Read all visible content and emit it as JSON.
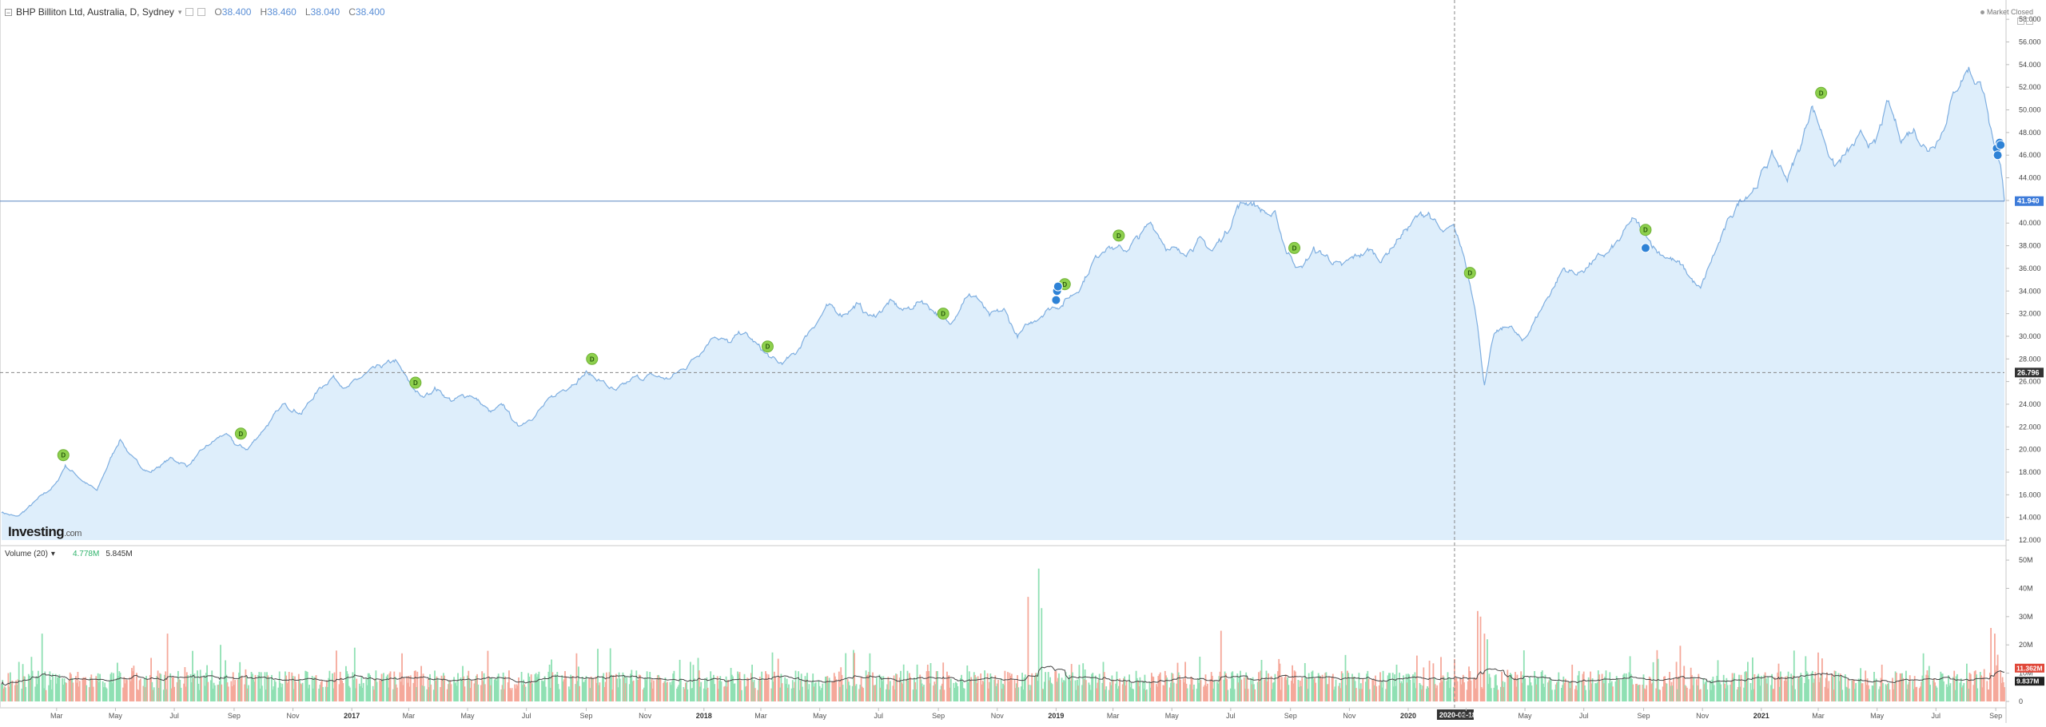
{
  "header": {
    "symbol": "BHP Billiton Ltd, Australia, D, Sydney",
    "open_label": "O",
    "open": "38.400",
    "high_label": "H",
    "high": "38.460",
    "low_label": "L",
    "low": "38.040",
    "close_label": "C",
    "close": "38.400"
  },
  "market_status": "Market Closed",
  "volume_header": {
    "label": "Volume (20)",
    "value_1": "4.778M",
    "value_2": "5.845M"
  },
  "watermark": {
    "brand": "Investing",
    "suffix": ".com"
  },
  "price_axis": {
    "ticks": [
      "12.000",
      "14.000",
      "16.000",
      "18.000",
      "20.000",
      "22.000",
      "24.000",
      "26.000",
      "28.000",
      "30.000",
      "32.000",
      "34.000",
      "36.000",
      "38.000",
      "40.000",
      "42.000",
      "44.000",
      "46.000",
      "48.000",
      "50.000",
      "52.000",
      "54.000",
      "56.000",
      "58.000"
    ],
    "range": [
      12,
      59
    ],
    "last_price_badge": "41.940",
    "last_price_value": 41.94,
    "crosshair_badge": "26.796",
    "crosshair_value": 26.796
  },
  "volume_axis": {
    "ticks": [
      "0",
      "10M",
      "20M",
      "30M",
      "40M",
      "50M"
    ],
    "badge_red": "11.362M",
    "badge_black": "9.837M"
  },
  "time_axis": {
    "labels": [
      "Mar",
      "May",
      "Jul",
      "Sep",
      "Nov",
      "2017",
      "Mar",
      "May",
      "Jul",
      "Sep",
      "Nov",
      "2018",
      "Mar",
      "May",
      "Jul",
      "Sep",
      "Nov",
      "2019",
      "Mar",
      "May",
      "Jul",
      "Sep",
      "Nov",
      "2020",
      "Mar",
      "May",
      "Jul",
      "Sep",
      "Nov",
      "2021",
      "Mar",
      "May",
      "Jul",
      "Sep"
    ],
    "crosshair_date": "2020-02-18"
  },
  "chart_data": {
    "type": "area",
    "x_start": "2016-01-04",
    "x_end": "2021-09-10",
    "anchors": [
      [
        "2016-01-04",
        14.5
      ],
      [
        "2016-01-20",
        14.0
      ],
      [
        "2016-02-10",
        15.5
      ],
      [
        "2016-03-01",
        17.0
      ],
      [
        "2016-03-10",
        18.6
      ],
      [
        "2016-03-28",
        17.3
      ],
      [
        "2016-04-12",
        16.3
      ],
      [
        "2016-04-25",
        19.0
      ],
      [
        "2016-05-06",
        21.0
      ],
      [
        "2016-05-20",
        19.0
      ],
      [
        "2016-06-06",
        18.0
      ],
      [
        "2016-06-27",
        19.2
      ],
      [
        "2016-07-15",
        18.6
      ],
      [
        "2016-08-05",
        20.3
      ],
      [
        "2016-08-22",
        21.4
      ],
      [
        "2016-09-02",
        20.4
      ],
      [
        "2016-09-15",
        20.0
      ],
      [
        "2016-10-03",
        22.0
      ],
      [
        "2016-10-24",
        24.0
      ],
      [
        "2016-11-10",
        23.3
      ],
      [
        "2016-11-28",
        25.3
      ],
      [
        "2016-12-12",
        26.5
      ],
      [
        "2016-12-28",
        25.5
      ],
      [
        "2017-01-16",
        26.6
      ],
      [
        "2017-02-03",
        27.3
      ],
      [
        "2017-02-15",
        27.8
      ],
      [
        "2017-02-28",
        26.0
      ],
      [
        "2017-03-15",
        24.5
      ],
      [
        "2017-03-28",
        25.5
      ],
      [
        "2017-04-15",
        24.3
      ],
      [
        "2017-05-05",
        24.9
      ],
      [
        "2017-05-25",
        23.2
      ],
      [
        "2017-06-08",
        23.8
      ],
      [
        "2017-06-22",
        22.0
      ],
      [
        "2017-07-10",
        23.2
      ],
      [
        "2017-07-28",
        24.5
      ],
      [
        "2017-08-18",
        26.0
      ],
      [
        "2017-09-01",
        26.8
      ],
      [
        "2017-09-18",
        26.0
      ],
      [
        "2017-10-02",
        25.0
      ],
      [
        "2017-10-20",
        26.2
      ],
      [
        "2017-11-08",
        26.5
      ],
      [
        "2017-11-25",
        26.2
      ],
      [
        "2017-12-12",
        27.2
      ],
      [
        "2017-12-29",
        28.8
      ],
      [
        "2018-01-12",
        30.3
      ],
      [
        "2018-01-28",
        29.3
      ],
      [
        "2018-02-10",
        30.4
      ],
      [
        "2018-02-20",
        29.6
      ],
      [
        "2018-03-05",
        28.5
      ],
      [
        "2018-03-20",
        27.5
      ],
      [
        "2018-04-05",
        28.3
      ],
      [
        "2018-04-20",
        30.5
      ],
      [
        "2018-05-08",
        32.5
      ],
      [
        "2018-05-24",
        32.0
      ],
      [
        "2018-06-08",
        32.8
      ],
      [
        "2018-06-25",
        31.6
      ],
      [
        "2018-07-12",
        33.0
      ],
      [
        "2018-07-28",
        32.2
      ],
      [
        "2018-08-15",
        33.2
      ],
      [
        "2018-08-28",
        32.3
      ],
      [
        "2018-09-12",
        31.0
      ],
      [
        "2018-09-28",
        33.5
      ],
      [
        "2018-10-10",
        33.6
      ],
      [
        "2018-10-24",
        31.6
      ],
      [
        "2018-11-08",
        32.2
      ],
      [
        "2018-11-22",
        30.0
      ],
      [
        "2018-12-05",
        31.0
      ],
      [
        "2018-12-20",
        32.3
      ],
      [
        "2019-01-08",
        33.0
      ],
      [
        "2019-01-22",
        34.0
      ],
      [
        "2019-02-08",
        36.5
      ],
      [
        "2019-02-22",
        38.2
      ],
      [
        "2019-03-12",
        37.5
      ],
      [
        "2019-03-28",
        38.7
      ],
      [
        "2019-04-10",
        40.0
      ],
      [
        "2019-04-26",
        38.0
      ],
      [
        "2019-05-10",
        37.2
      ],
      [
        "2019-05-28",
        38.5
      ],
      [
        "2019-06-12",
        37.5
      ],
      [
        "2019-06-28",
        39.5
      ],
      [
        "2019-07-08",
        41.5
      ],
      [
        "2019-07-22",
        42.0
      ],
      [
        "2019-08-05",
        41.0
      ],
      [
        "2019-08-16",
        40.5
      ],
      [
        "2019-08-28",
        37.5
      ],
      [
        "2019-09-12",
        36.0
      ],
      [
        "2019-09-25",
        37.6
      ],
      [
        "2019-10-10",
        37.0
      ],
      [
        "2019-10-24",
        36.0
      ],
      [
        "2019-11-08",
        37.0
      ],
      [
        "2019-11-22",
        37.6
      ],
      [
        "2019-12-05",
        36.8
      ],
      [
        "2019-12-20",
        38.5
      ],
      [
        "2020-01-08",
        40.3
      ],
      [
        "2020-01-22",
        41.0
      ],
      [
        "2020-02-05",
        39.0
      ],
      [
        "2020-02-18",
        39.3
      ],
      [
        "2020-02-28",
        37.0
      ],
      [
        "2020-03-10",
        33.0
      ],
      [
        "2020-03-20",
        25.8
      ],
      [
        "2020-03-30",
        30.0
      ],
      [
        "2020-04-15",
        31.0
      ],
      [
        "2020-04-28",
        29.4
      ],
      [
        "2020-05-15",
        32.0
      ],
      [
        "2020-05-28",
        34.0
      ],
      [
        "2020-06-10",
        36.0
      ],
      [
        "2020-06-25",
        35.5
      ],
      [
        "2020-07-10",
        36.6
      ],
      [
        "2020-07-25",
        37.2
      ],
      [
        "2020-08-08",
        38.5
      ],
      [
        "2020-08-20",
        40.2
      ],
      [
        "2020-09-02",
        39.2
      ],
      [
        "2020-09-15",
        37.6
      ],
      [
        "2020-09-28",
        37.0
      ],
      [
        "2020-10-12",
        36.0
      ],
      [
        "2020-10-30",
        34.0
      ],
      [
        "2020-11-12",
        37.0
      ],
      [
        "2020-11-28",
        40.0
      ],
      [
        "2020-12-10",
        42.0
      ],
      [
        "2020-12-28",
        43.6
      ],
      [
        "2021-01-12",
        46.0
      ],
      [
        "2021-01-28",
        44.0
      ],
      [
        "2021-02-12",
        47.0
      ],
      [
        "2021-02-22",
        50.6
      ],
      [
        "2021-03-05",
        48.0
      ],
      [
        "2021-03-18",
        45.0
      ],
      [
        "2021-04-01",
        46.2
      ],
      [
        "2021-04-15",
        47.5
      ],
      [
        "2021-04-29",
        46.8
      ],
      [
        "2021-05-12",
        50.5
      ],
      [
        "2021-05-26",
        47.5
      ],
      [
        "2021-06-08",
        48.4
      ],
      [
        "2021-06-22",
        46.5
      ],
      [
        "2021-07-06",
        48.0
      ],
      [
        "2021-07-22",
        52.0
      ],
      [
        "2021-08-04",
        53.8
      ],
      [
        "2021-08-12",
        52.4
      ],
      [
        "2021-08-20",
        52.0
      ],
      [
        "2021-08-26",
        48.5
      ],
      [
        "2021-08-31",
        46.0
      ],
      [
        "2021-09-06",
        44.5
      ],
      [
        "2021-09-10",
        41.94
      ]
    ],
    "dividend_markers": [
      [
        "2016-03-08",
        19.5
      ],
      [
        "2016-09-08",
        21.4
      ],
      [
        "2017-03-08",
        25.9
      ],
      [
        "2017-09-07",
        28.0
      ],
      [
        "2018-03-08",
        29.1
      ],
      [
        "2018-09-06",
        32.0
      ],
      [
        "2019-01-10",
        34.6
      ],
      [
        "2019-03-07",
        38.9
      ],
      [
        "2019-09-05",
        37.8
      ],
      [
        "2020-03-05",
        35.6
      ],
      [
        "2020-09-03",
        39.4
      ],
      [
        "2021-03-04",
        51.5
      ]
    ],
    "blue_markers": [
      [
        "2019-01-01",
        33.2
      ],
      [
        "2019-01-02",
        34.0
      ],
      [
        "2019-01-03",
        34.4
      ],
      [
        "2020-09-03",
        37.8
      ],
      [
        "2021-09-02",
        46.6
      ],
      [
        "2021-09-03",
        46.0
      ],
      [
        "2021-09-05",
        47.1
      ],
      [
        "2021-09-06",
        46.9
      ]
    ],
    "volume_spikes": [
      [
        "2016-02-15",
        24
      ],
      [
        "2016-06-24",
        24
      ],
      [
        "2016-08-18",
        20
      ],
      [
        "2016-12-16",
        18
      ],
      [
        "2017-02-22",
        17
      ],
      [
        "2017-08-22",
        17
      ],
      [
        "2017-12-18",
        14
      ],
      [
        "2018-02-20",
        13
      ],
      [
        "2018-06-22",
        17
      ],
      [
        "2018-08-21",
        13
      ],
      [
        "2018-12-03",
        37
      ],
      [
        "2018-12-14",
        47
      ],
      [
        "2018-12-17",
        33
      ],
      [
        "2019-02-19",
        14
      ],
      [
        "2019-05-15",
        14
      ],
      [
        "2019-06-21",
        25
      ],
      [
        "2019-08-20",
        15
      ],
      [
        "2019-12-20",
        13
      ],
      [
        "2020-02-18",
        15
      ],
      [
        "2020-03-13",
        32
      ],
      [
        "2020-03-16",
        30
      ],
      [
        "2020-03-20",
        24
      ],
      [
        "2020-03-23",
        22
      ],
      [
        "2020-06-19",
        13
      ],
      [
        "2020-08-18",
        16
      ],
      [
        "2020-12-18",
        14
      ],
      [
        "2021-02-16",
        16
      ],
      [
        "2021-06-18",
        17
      ],
      [
        "2021-08-27",
        26
      ],
      [
        "2021-08-31",
        24
      ],
      [
        "2021-09-06",
        11
      ]
    ]
  }
}
